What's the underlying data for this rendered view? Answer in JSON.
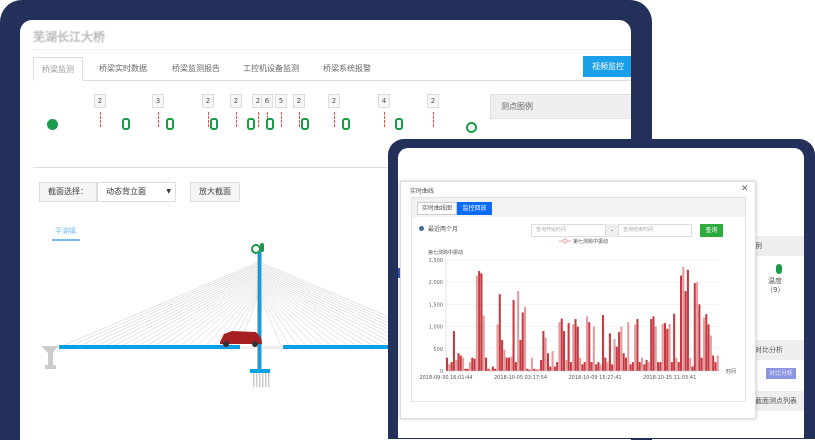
{
  "app": {
    "title": "芜湖长江大桥"
  },
  "tabs": [
    {
      "label": "桥梁监测",
      "active": true
    },
    {
      "label": "桥梁实时数据"
    },
    {
      "label": "桥梁监测报告"
    },
    {
      "label": "工控机设备监测"
    },
    {
      "label": "桥梁系统报警"
    }
  ],
  "video_button": "视频监控",
  "legend_panel": {
    "title": "测点图例"
  },
  "sensor_counts": [
    "2",
    "3",
    "2",
    "2",
    "2",
    "6",
    "5",
    "2",
    "2",
    "4",
    "2"
  ],
  "section": {
    "label": "截面选择：",
    "selected": "动态背立面",
    "zoom_button": "放大截面",
    "direction_label": "平湖镇"
  },
  "modal": {
    "title": "实时曲线",
    "tabs": [
      {
        "label": "实时曲线图"
      },
      {
        "label": "监控回放",
        "active": true
      }
    ],
    "range_option": "最近两个月",
    "start_placeholder": "查询开始时间",
    "separator": "-",
    "end_placeholder": "查询结束时间",
    "query_button": "查询"
  },
  "side": {
    "legend_header": "例",
    "sensor_label": "温度",
    "sensor_count": "（9）",
    "compare_header": "对比分析",
    "compare_button": "对比分析",
    "list_header": "截面测点列表"
  },
  "colors": {
    "accent": "#1aa0e8",
    "active_tab": "#0a6cff",
    "query": "#2eaa3e",
    "series": "#c0262c",
    "frame": "#22305a",
    "sensor": "#1a9a4a"
  },
  "chart_data": {
    "type": "bar",
    "series": [
      {
        "name": "第七测跨中振动",
        "values": [
          300,
          150,
          200,
          900,
          250,
          400,
          350,
          300,
          50,
          50,
          200,
          300,
          280,
          2150,
          2250,
          2200,
          1250,
          300,
          50,
          30,
          100,
          50,
          1050,
          1730,
          700,
          480,
          300,
          300,
          320,
          1600,
          200,
          1800,
          700,
          1320,
          1450,
          50,
          30,
          300,
          50,
          30,
          50,
          250,
          900,
          750,
          400,
          100,
          450,
          100,
          200,
          1100,
          1180,
          900,
          250,
          1080,
          200,
          1050,
          1170,
          1000,
          300,
          150,
          200,
          1230,
          1100,
          200,
          1000,
          150,
          200,
          150,
          1260,
          300,
          200,
          850,
          150,
          720,
          550,
          880,
          1000,
          400,
          300,
          1100,
          150,
          200,
          1050,
          1170,
          200,
          300,
          150,
          250,
          200,
          1170,
          1230,
          1000,
          200,
          200,
          1060,
          1080,
          950,
          1060,
          200,
          1290,
          300,
          200,
          2150,
          2350,
          1800,
          2280,
          300,
          100,
          1980,
          2000,
          1500,
          300,
          1200,
          1280,
          1050,
          800,
          350,
          200,
          350
        ]
      }
    ],
    "ylabel": "第七测跨中振动",
    "xlabel": "时间",
    "ylim": [
      0,
      2500
    ],
    "yticks": [
      "2,500",
      "2,000",
      "1,500",
      "1,000",
      "500",
      "0"
    ],
    "xticks": [
      "2018-09-30 16:01:44",
      "2018-10-05 03:17:54",
      "2018-10-09 15:27:41",
      "2018-10-15 11:03:41"
    ],
    "grid": true,
    "legend": "top-center"
  }
}
